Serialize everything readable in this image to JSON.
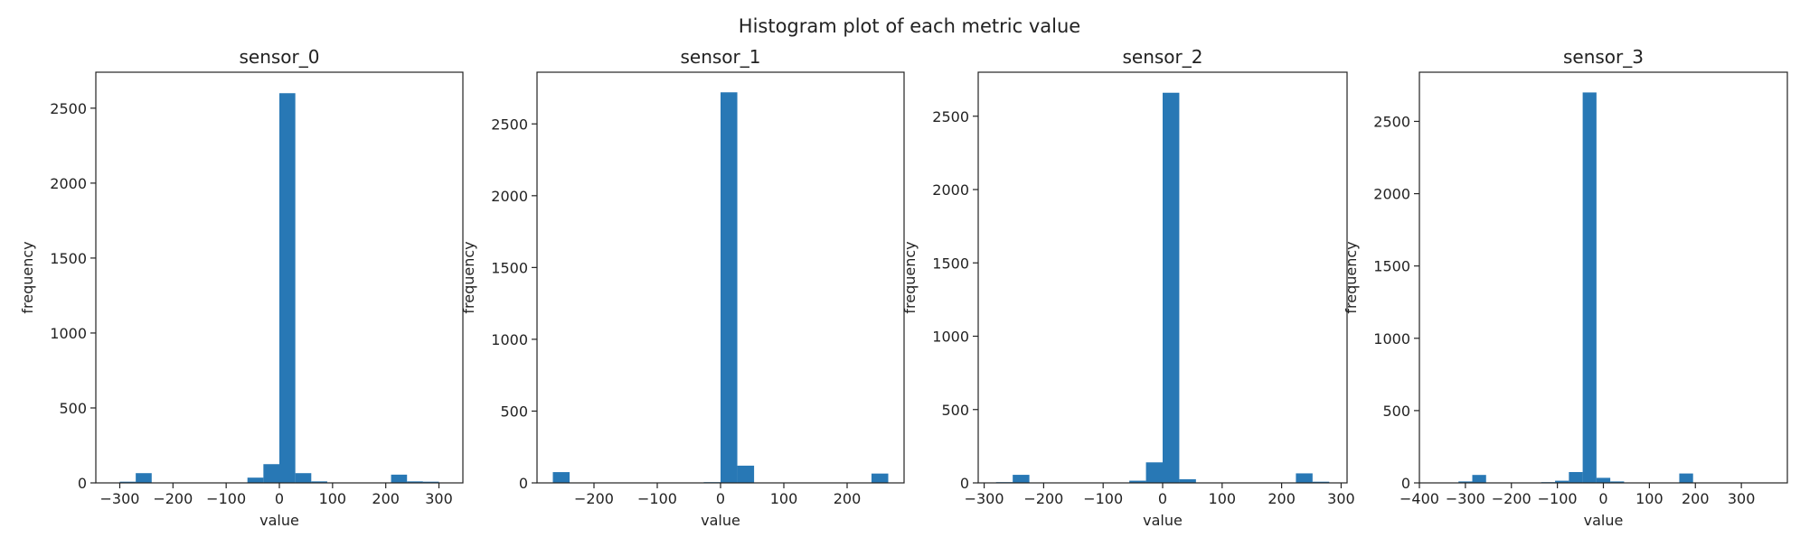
{
  "figure": {
    "title": "Histogram plot of each metric value",
    "bar_color": "#2878b5"
  },
  "chart_data": [
    {
      "type": "bar",
      "title": "sensor_0",
      "xlabel": "value",
      "ylabel": "frequency",
      "xlim": [
        -345,
        345
      ],
      "ylim": [
        0,
        2740
      ],
      "xticks": [
        -300,
        -200,
        -100,
        0,
        100,
        200,
        300
      ],
      "yticks": [
        0,
        500,
        1000,
        1500,
        2000,
        2500
      ],
      "bin_edges": [
        -300,
        -270,
        -240,
        -210,
        -180,
        -150,
        -120,
        -90,
        -60,
        -30,
        0,
        30,
        60,
        90,
        120,
        150,
        180,
        210,
        240,
        270,
        300
      ],
      "values": [
        8,
        65,
        0,
        0,
        0,
        0,
        0,
        0,
        35,
        125,
        2600,
        65,
        10,
        0,
        0,
        0,
        0,
        55,
        10,
        8
      ]
    },
    {
      "type": "bar",
      "title": "sensor_1",
      "xlabel": "value",
      "ylabel": "frequency",
      "xlim": [
        -290,
        290
      ],
      "ylim": [
        0,
        2860
      ],
      "xticks": [
        -200,
        -100,
        0,
        100,
        200
      ],
      "yticks": [
        0,
        500,
        1000,
        1500,
        2000,
        2500
      ],
      "bin_edges": [
        -265,
        -238.5,
        -212,
        -185.5,
        -159,
        -132.5,
        -106,
        -79.5,
        -53,
        -26.5,
        0,
        26.5,
        53,
        79.5,
        106,
        132.5,
        159,
        185.5,
        212,
        238.5,
        265
      ],
      "values": [
        75,
        0,
        0,
        0,
        0,
        0,
        0,
        0,
        0,
        5,
        2720,
        120,
        0,
        0,
        0,
        0,
        0,
        0,
        0,
        65
      ]
    },
    {
      "type": "bar",
      "title": "sensor_2",
      "xlabel": "value",
      "ylabel": "frequency",
      "xlim": [
        -310,
        310
      ],
      "ylim": [
        0,
        2800
      ],
      "xticks": [
        -300,
        -200,
        -100,
        0,
        100,
        200,
        300
      ],
      "yticks": [
        0,
        500,
        1000,
        1500,
        2000,
        2500
      ],
      "bin_edges": [
        -280,
        -252,
        -224,
        -196,
        -168,
        -140,
        -112,
        -84,
        -56,
        -28,
        0,
        28,
        56,
        84,
        112,
        140,
        168,
        196,
        224,
        252,
        280
      ],
      "values": [
        5,
        55,
        0,
        0,
        0,
        0,
        0,
        0,
        15,
        140,
        2660,
        25,
        0,
        0,
        0,
        0,
        0,
        0,
        65,
        8
      ]
    },
    {
      "type": "bar",
      "title": "sensor_3",
      "xlabel": "value",
      "ylabel": "frequency",
      "xlim": [
        -400,
        400
      ],
      "ylim": [
        0,
        2840
      ],
      "xticks": [
        -400,
        -300,
        -200,
        -100,
        0,
        100,
        200,
        300
      ],
      "yticks": [
        0,
        500,
        1000,
        1500,
        2000,
        2500
      ],
      "bin_edges": [
        -345,
        -315,
        -285,
        -255,
        -225,
        -195,
        -165,
        -135,
        -105,
        -75,
        -45,
        -15,
        15,
        45,
        75,
        105,
        135,
        165,
        195,
        225,
        255,
        285
      ],
      "values": [
        0,
        10,
        55,
        0,
        0,
        0,
        0,
        5,
        15,
        75,
        2700,
        35,
        10,
        0,
        0,
        0,
        0,
        65,
        0,
        0,
        0
      ]
    }
  ]
}
